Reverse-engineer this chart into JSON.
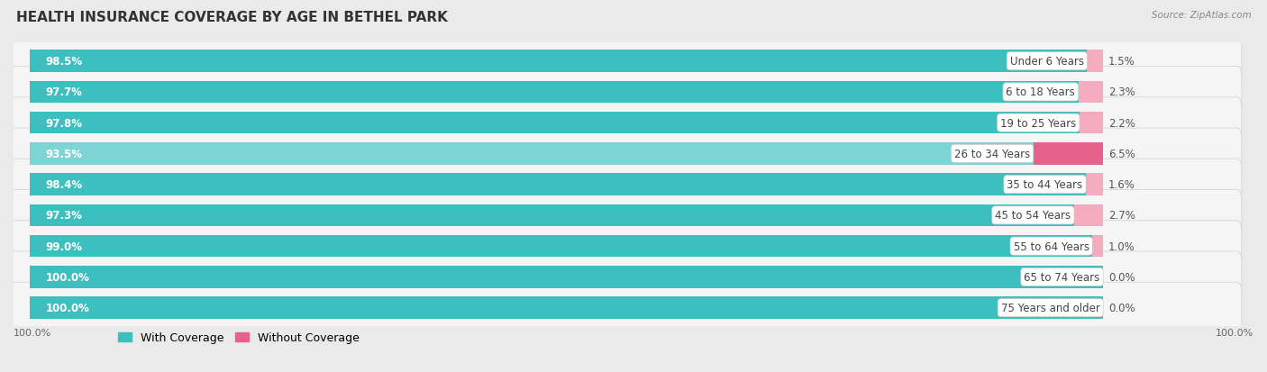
{
  "title": "HEALTH INSURANCE COVERAGE BY AGE IN BETHEL PARK",
  "source": "Source: ZipAtlas.com",
  "categories": [
    "Under 6 Years",
    "6 to 18 Years",
    "19 to 25 Years",
    "26 to 34 Years",
    "35 to 44 Years",
    "45 to 54 Years",
    "55 to 64 Years",
    "65 to 74 Years",
    "75 Years and older"
  ],
  "with_coverage": [
    98.5,
    97.7,
    97.8,
    93.5,
    98.4,
    97.3,
    99.0,
    100.0,
    100.0
  ],
  "without_coverage": [
    1.5,
    2.3,
    2.2,
    6.5,
    1.6,
    2.7,
    1.0,
    0.0,
    0.0
  ],
  "with_coverage_color_full": "#3DBFBF",
  "with_coverage_color_light": "#7DD4D4",
  "without_coverage_color_full": "#E8618C",
  "without_coverage_color_light": "#F4AABF",
  "bg_color": "#eaeaea",
  "row_bg_color": "#f5f5f5",
  "row_border_color": "#d8d8d8",
  "title_fontsize": 11,
  "bar_label_fontsize": 8.5,
  "category_fontsize": 8.5,
  "legend_fontsize": 9,
  "total_width": 100,
  "label_pill_color": "#ffffff",
  "woc_threshold": 4.0
}
